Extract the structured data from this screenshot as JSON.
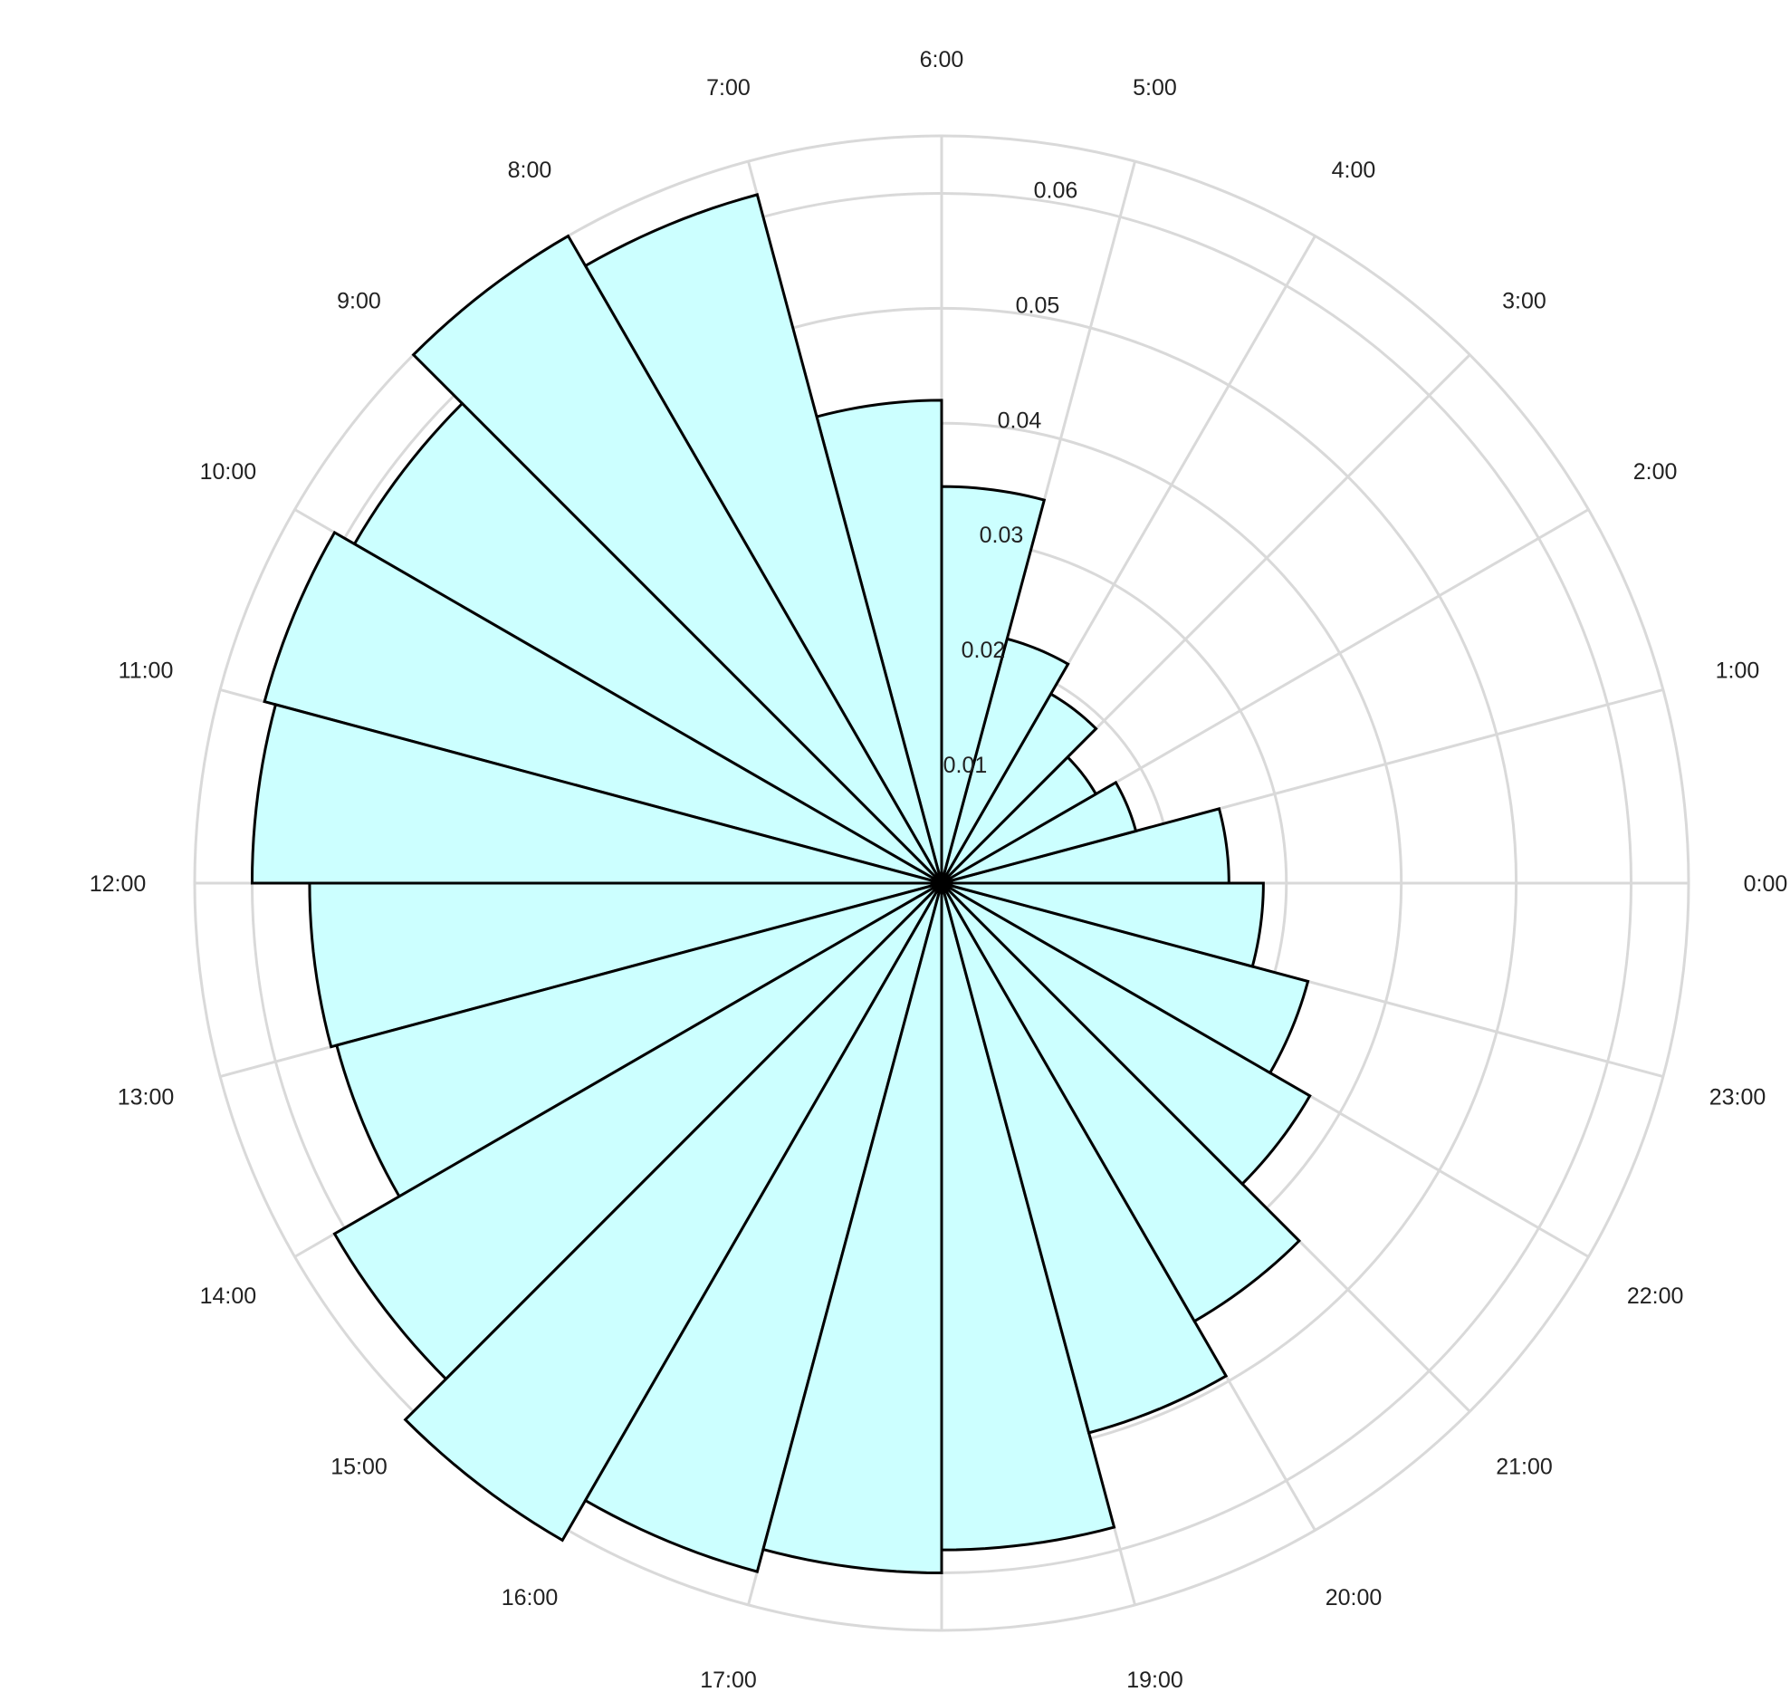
{
  "chart_data": {
    "type": "polar-bar",
    "title": "",
    "categories": [
      "0:00",
      "1:00",
      "2:00",
      "3:00",
      "4:00",
      "5:00",
      "6:00",
      "7:00",
      "8:00",
      "9:00",
      "10:00",
      "11:00",
      "12:00",
      "13:00",
      "14:00",
      "15:00",
      "16:00",
      "17:00",
      "18:00",
      "19:00",
      "20:00",
      "21:00",
      "22:00",
      "23:00"
    ],
    "values": [
      0.025,
      0.0175,
      0.0155,
      0.019,
      0.022,
      0.0345,
      0.042,
      0.062,
      0.065,
      0.059,
      0.061,
      0.06,
      0.055,
      0.0545,
      0.061,
      0.066,
      0.062,
      0.06,
      0.058,
      0.0495,
      0.044,
      0.037,
      0.033,
      0.028
    ],
    "radial_ticks": [
      "0.01",
      "0.02",
      "0.03",
      "0.04",
      "0.05",
      "0.06"
    ],
    "radial_tick_values": [
      0.01,
      0.02,
      0.03,
      0.04,
      0.05,
      0.06
    ],
    "rlim": [
      0,
      0.065
    ],
    "angular_ticks": [
      "0:00",
      "1:00",
      "2:00",
      "3:00",
      "4:00",
      "5:00",
      "6:00",
      "7:00",
      "8:00",
      "9:00",
      "10:00",
      "11:00",
      "12:00",
      "13:00",
      "14:00",
      "15:00",
      "16:00",
      "17:00",
      "18:00",
      "19:00",
      "20:00",
      "21:00",
      "22:00",
      "23:00"
    ],
    "bar_fill": "#ccffff",
    "bar_edge": "#000000",
    "grid_color": "#d9d9d9",
    "grid": true
  }
}
